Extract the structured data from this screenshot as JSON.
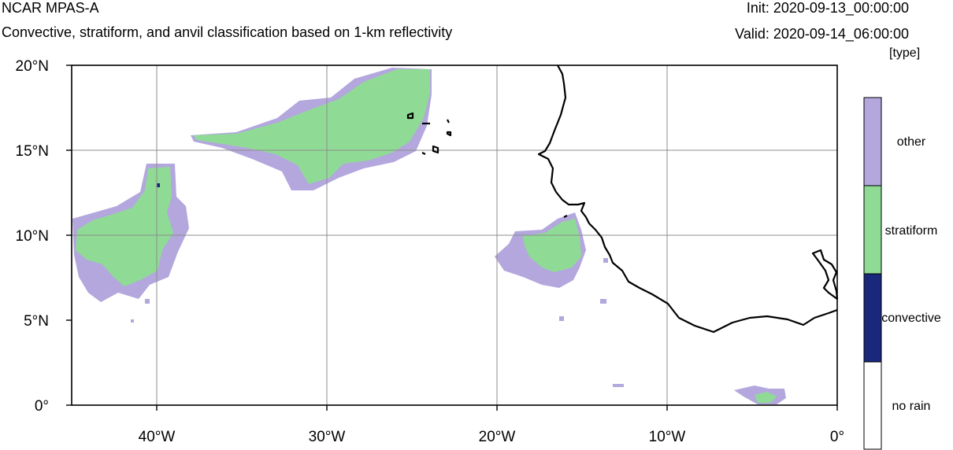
{
  "header": {
    "title": "NCAR MPAS-A",
    "subtitle": "Convective, stratiform, and anvil classification based on 1-km reflectivity",
    "init": "Init: 2020-09-13_00:00:00",
    "valid": "Valid: 2020-09-14_06:00:00"
  },
  "map": {
    "lon_range": [
      -45,
      0
    ],
    "lat_range": [
      0,
      20
    ],
    "lon_ticks": [
      {
        "value": -40,
        "label": "40°W"
      },
      {
        "value": -30,
        "label": "30°W"
      },
      {
        "value": -20,
        "label": "20°W"
      },
      {
        "value": -10,
        "label": "10°W"
      },
      {
        "value": 0,
        "label": "0°"
      }
    ],
    "lat_ticks": [
      {
        "value": 20,
        "label": "20°N"
      },
      {
        "value": 15,
        "label": "15°N"
      },
      {
        "value": 10,
        "label": "10°N"
      },
      {
        "value": 5,
        "label": "5°N"
      },
      {
        "value": 0,
        "label": "0°"
      }
    ],
    "gridlines": {
      "lons": [
        -40,
        -30,
        -20,
        -10
      ],
      "lats": [
        15,
        10
      ]
    }
  },
  "colorbar": {
    "units": "[type]",
    "categories": [
      {
        "label": "other",
        "color": "#b3a7dd"
      },
      {
        "label": "stratiform",
        "color": "#8fdb96"
      },
      {
        "label": "convective",
        "color": "#19287a"
      },
      {
        "label": "no rain",
        "color": "#ffffff"
      }
    ]
  }
}
